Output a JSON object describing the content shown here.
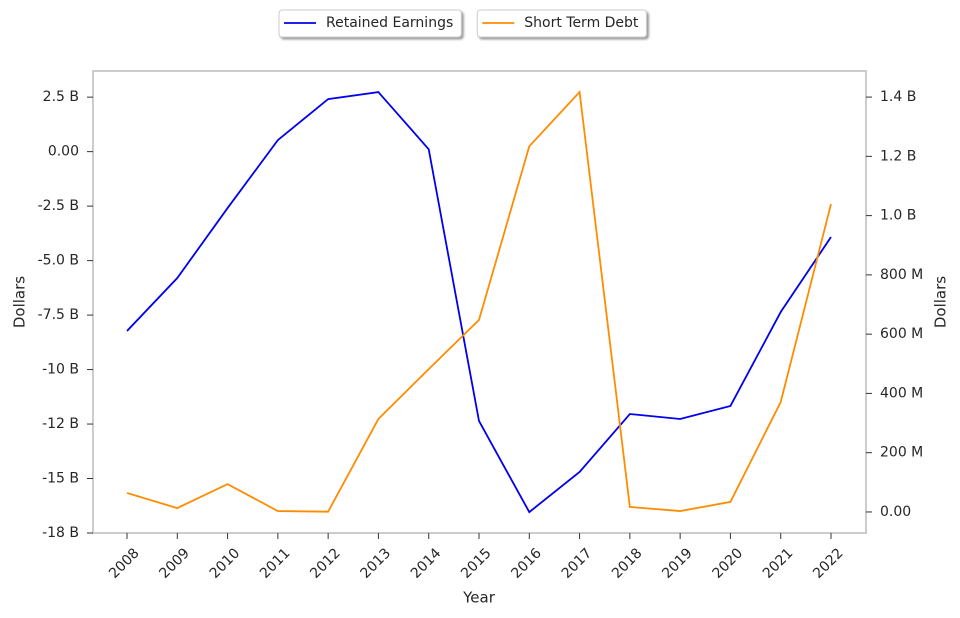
{
  "chart_data": {
    "type": "line",
    "xlabel": "Year",
    "ylabel": "Dollars",
    "y2label": "Dollars",
    "categories": [
      "2008",
      "2009",
      "2010",
      "2011",
      "2012",
      "2013",
      "2014",
      "2015",
      "2016",
      "2017",
      "2018",
      "2019",
      "2020",
      "2021",
      "2022"
    ],
    "series": [
      {
        "name": "Retained Earnings",
        "color": "#0000ee",
        "axis": "y",
        "values": [
          -8230000000,
          -5800000000,
          -2590000000,
          530000000,
          2410000000,
          2730000000,
          110000000,
          -12360000000,
          -16540000000,
          -14700000000,
          -12040000000,
          -12270000000,
          -11670000000,
          -7360000000,
          -3920000000
        ]
      },
      {
        "name": "Short Term Debt",
        "color": "#ff8c00",
        "axis": "y2",
        "values": [
          64000000,
          13000000,
          94000000,
          3000000,
          1000000,
          314000000,
          482000000,
          648000000,
          1234000000,
          1417000000,
          17000000,
          3000000,
          34000000,
          371000000,
          1039000000
        ]
      }
    ],
    "ylim": [
      -17500000000,
      3700000000
    ],
    "yticks": [
      {
        "value": 2500000000,
        "label": "2.5 B"
      },
      {
        "value": 0,
        "label": "0.00"
      },
      {
        "value": -2500000000,
        "label": "-2.5 B"
      },
      {
        "value": -5000000000,
        "label": "-5.0 B"
      },
      {
        "value": -7500000000,
        "label": "-7.5 B"
      },
      {
        "value": -10000000000,
        "label": "-10 B"
      },
      {
        "value": -12500000000,
        "label": "-12 B"
      },
      {
        "value": -15000000000,
        "label": "-15 B"
      },
      {
        "value": -17500000000,
        "label": "-18 B"
      }
    ],
    "y2lim": [
      -71000000,
      1488000000
    ],
    "y2ticks": [
      {
        "value": 0,
        "label": "0.00"
      },
      {
        "value": 200000000,
        "label": "200 M"
      },
      {
        "value": 400000000,
        "label": "400 M"
      },
      {
        "value": 600000000,
        "label": "600 M"
      },
      {
        "value": 800000000,
        "label": "800 M"
      },
      {
        "value": 1000000000,
        "label": "1.0 B"
      },
      {
        "value": 1200000000,
        "label": "1.2 B"
      },
      {
        "value": 1400000000,
        "label": "1.4 B"
      }
    ]
  }
}
